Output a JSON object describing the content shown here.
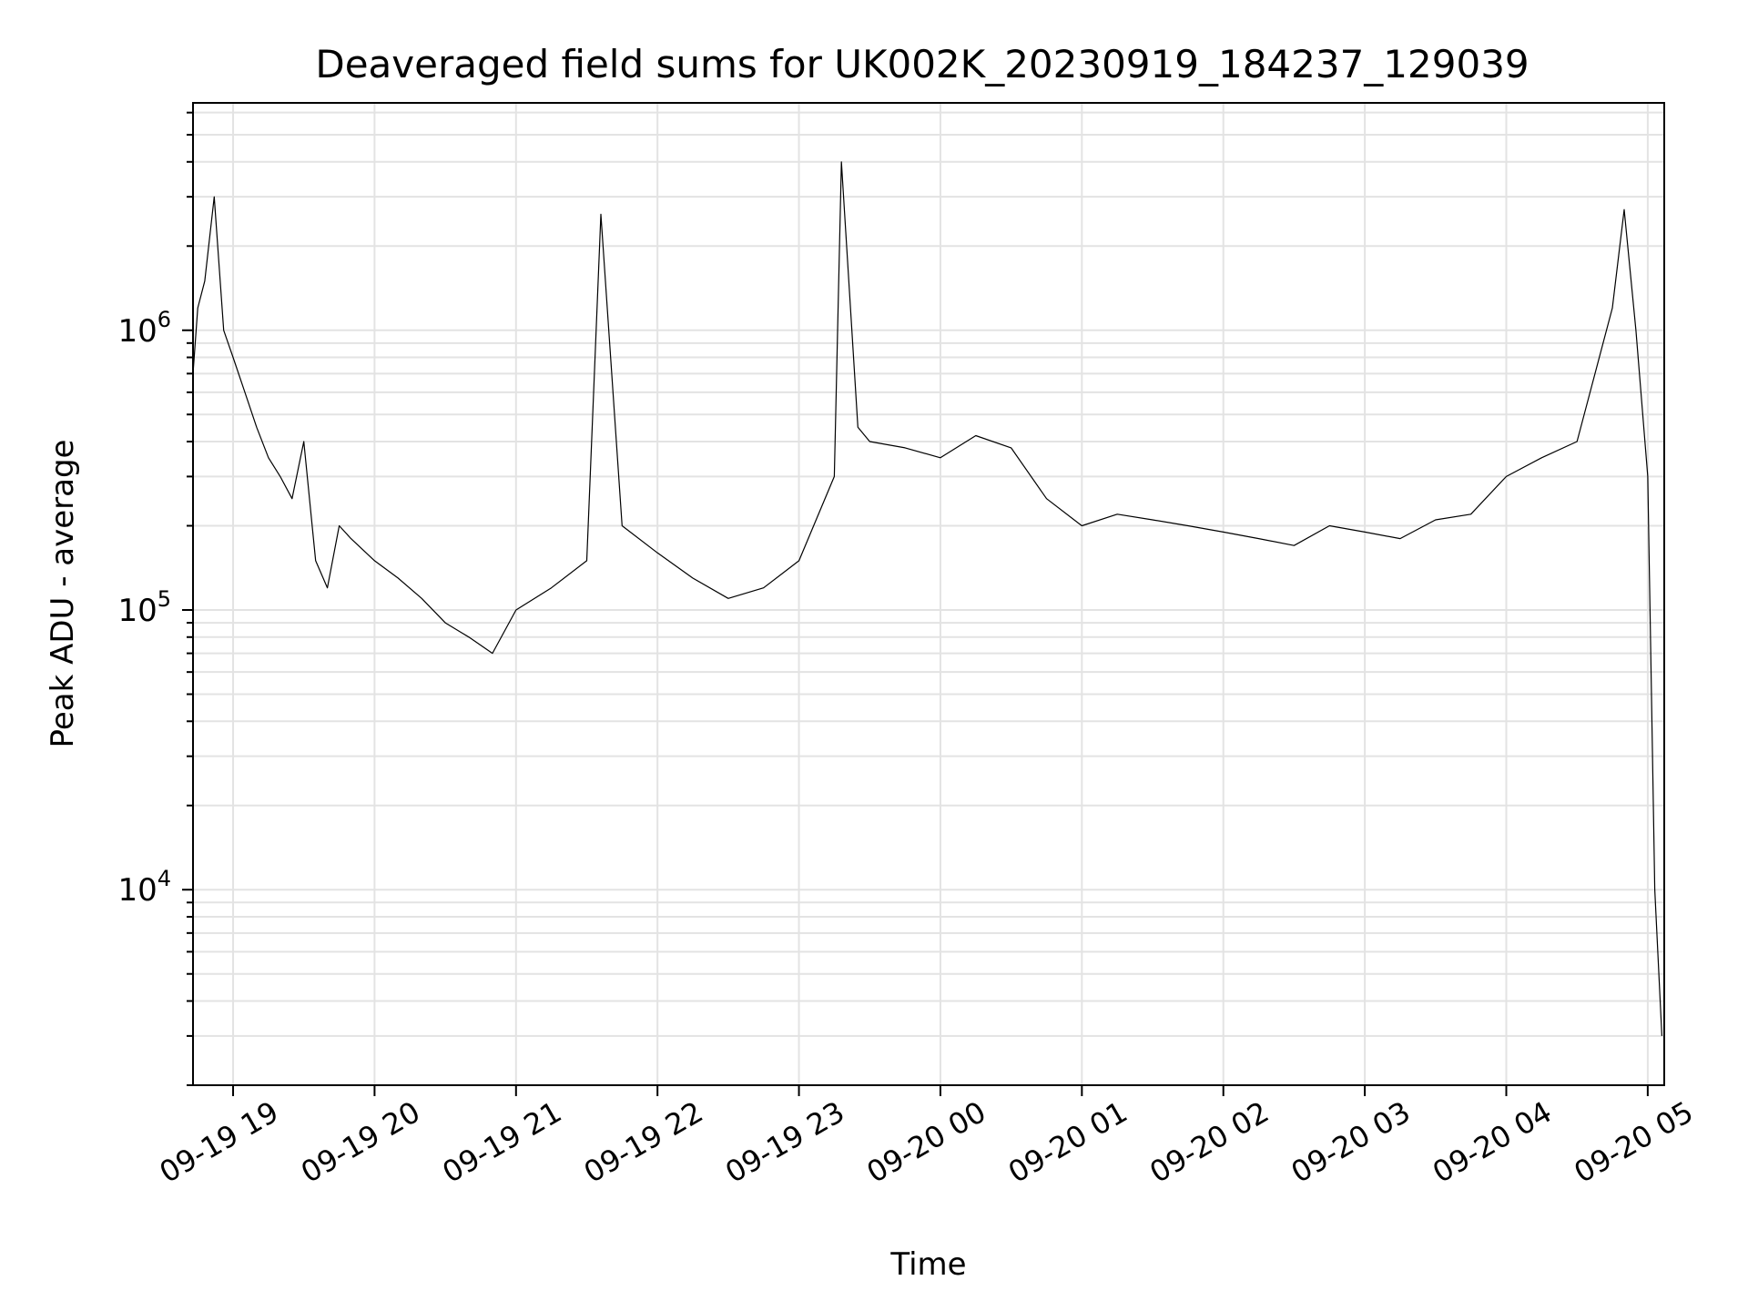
{
  "chart_data": {
    "type": "line",
    "title": "Deaveraged field sums for UK002K_20230919_184237_129039",
    "xlabel": "Time",
    "ylabel": "Peak ADU - average",
    "yscale": "log",
    "ylim": [
      2000,
      6500000
    ],
    "xlim": [
      "2023-09-19 18:43",
      "2023-09-20 05:07"
    ],
    "grid": true,
    "grid_minor": true,
    "x_tick_labels": [
      "09-19 19",
      "09-19 20",
      "09-19 21",
      "09-19 22",
      "09-19 23",
      "09-20 00",
      "09-20 01",
      "09-20 02",
      "09-20 03",
      "09-20 04",
      "09-20 05"
    ],
    "x_tick_values": [
      "2023-09-19 19:00",
      "2023-09-19 20:00",
      "2023-09-19 21:00",
      "2023-09-19 22:00",
      "2023-09-19 23:00",
      "2023-09-20 00:00",
      "2023-09-20 01:00",
      "2023-09-20 02:00",
      "2023-09-20 03:00",
      "2023-09-20 04:00",
      "2023-09-20 05:00"
    ],
    "y_ticks": [
      {
        "value": 10000,
        "base": "10",
        "exp": "4"
      },
      {
        "value": 100000,
        "base": "10",
        "exp": "5"
      },
      {
        "value": 1000000,
        "base": "10",
        "exp": "6"
      }
    ],
    "series": [
      {
        "color": "#000000",
        "x": [
          "2023-09-19 18:43",
          "2023-09-19 18:45",
          "2023-09-19 18:48",
          "2023-09-19 18:52",
          "2023-09-19 18:56",
          "2023-09-19 19:00",
          "2023-09-19 19:05",
          "2023-09-19 19:10",
          "2023-09-19 19:15",
          "2023-09-19 19:20",
          "2023-09-19 19:25",
          "2023-09-19 19:30",
          "2023-09-19 19:35",
          "2023-09-19 19:40",
          "2023-09-19 19:45",
          "2023-09-19 19:50",
          "2023-09-19 20:00",
          "2023-09-19 20:10",
          "2023-09-19 20:20",
          "2023-09-19 20:30",
          "2023-09-19 20:40",
          "2023-09-19 20:50",
          "2023-09-19 21:00",
          "2023-09-19 21:15",
          "2023-09-19 21:30",
          "2023-09-19 21:36",
          "2023-09-19 21:45",
          "2023-09-19 22:00",
          "2023-09-19 22:15",
          "2023-09-19 22:30",
          "2023-09-19 22:45",
          "2023-09-19 23:00",
          "2023-09-19 23:15",
          "2023-09-19 23:18",
          "2023-09-19 23:25",
          "2023-09-19 23:30",
          "2023-09-19 23:45",
          "2023-09-20 00:00",
          "2023-09-20 00:15",
          "2023-09-20 00:30",
          "2023-09-20 00:45",
          "2023-09-20 01:00",
          "2023-09-20 01:15",
          "2023-09-20 01:30",
          "2023-09-20 01:45",
          "2023-09-20 02:00",
          "2023-09-20 02:15",
          "2023-09-20 02:30",
          "2023-09-20 02:45",
          "2023-09-20 03:00",
          "2023-09-20 03:15",
          "2023-09-20 03:30",
          "2023-09-20 03:45",
          "2023-09-20 04:00",
          "2023-09-20 04:15",
          "2023-09-20 04:30",
          "2023-09-20 04:45",
          "2023-09-20 04:50",
          "2023-09-20 04:55",
          "2023-09-20 05:00",
          "2023-09-20 05:03",
          "2023-09-20 05:06"
        ],
        "y": [
          700000,
          1200000,
          1500000,
          3000000,
          1000000,
          800000,
          600000,
          450000,
          350000,
          300000,
          250000,
          400000,
          150000,
          120000,
          200000,
          180000,
          150000,
          130000,
          110000,
          90000,
          80000,
          70000,
          100000,
          120000,
          150000,
          2600000,
          200000,
          160000,
          130000,
          110000,
          120000,
          150000,
          300000,
          4000000,
          450000,
          400000,
          380000,
          350000,
          420000,
          380000,
          250000,
          200000,
          220000,
          210000,
          200000,
          190000,
          180000,
          170000,
          200000,
          190000,
          180000,
          210000,
          220000,
          300000,
          350000,
          400000,
          1200000,
          2700000,
          1000000,
          300000,
          10000,
          3000
        ]
      }
    ]
  }
}
